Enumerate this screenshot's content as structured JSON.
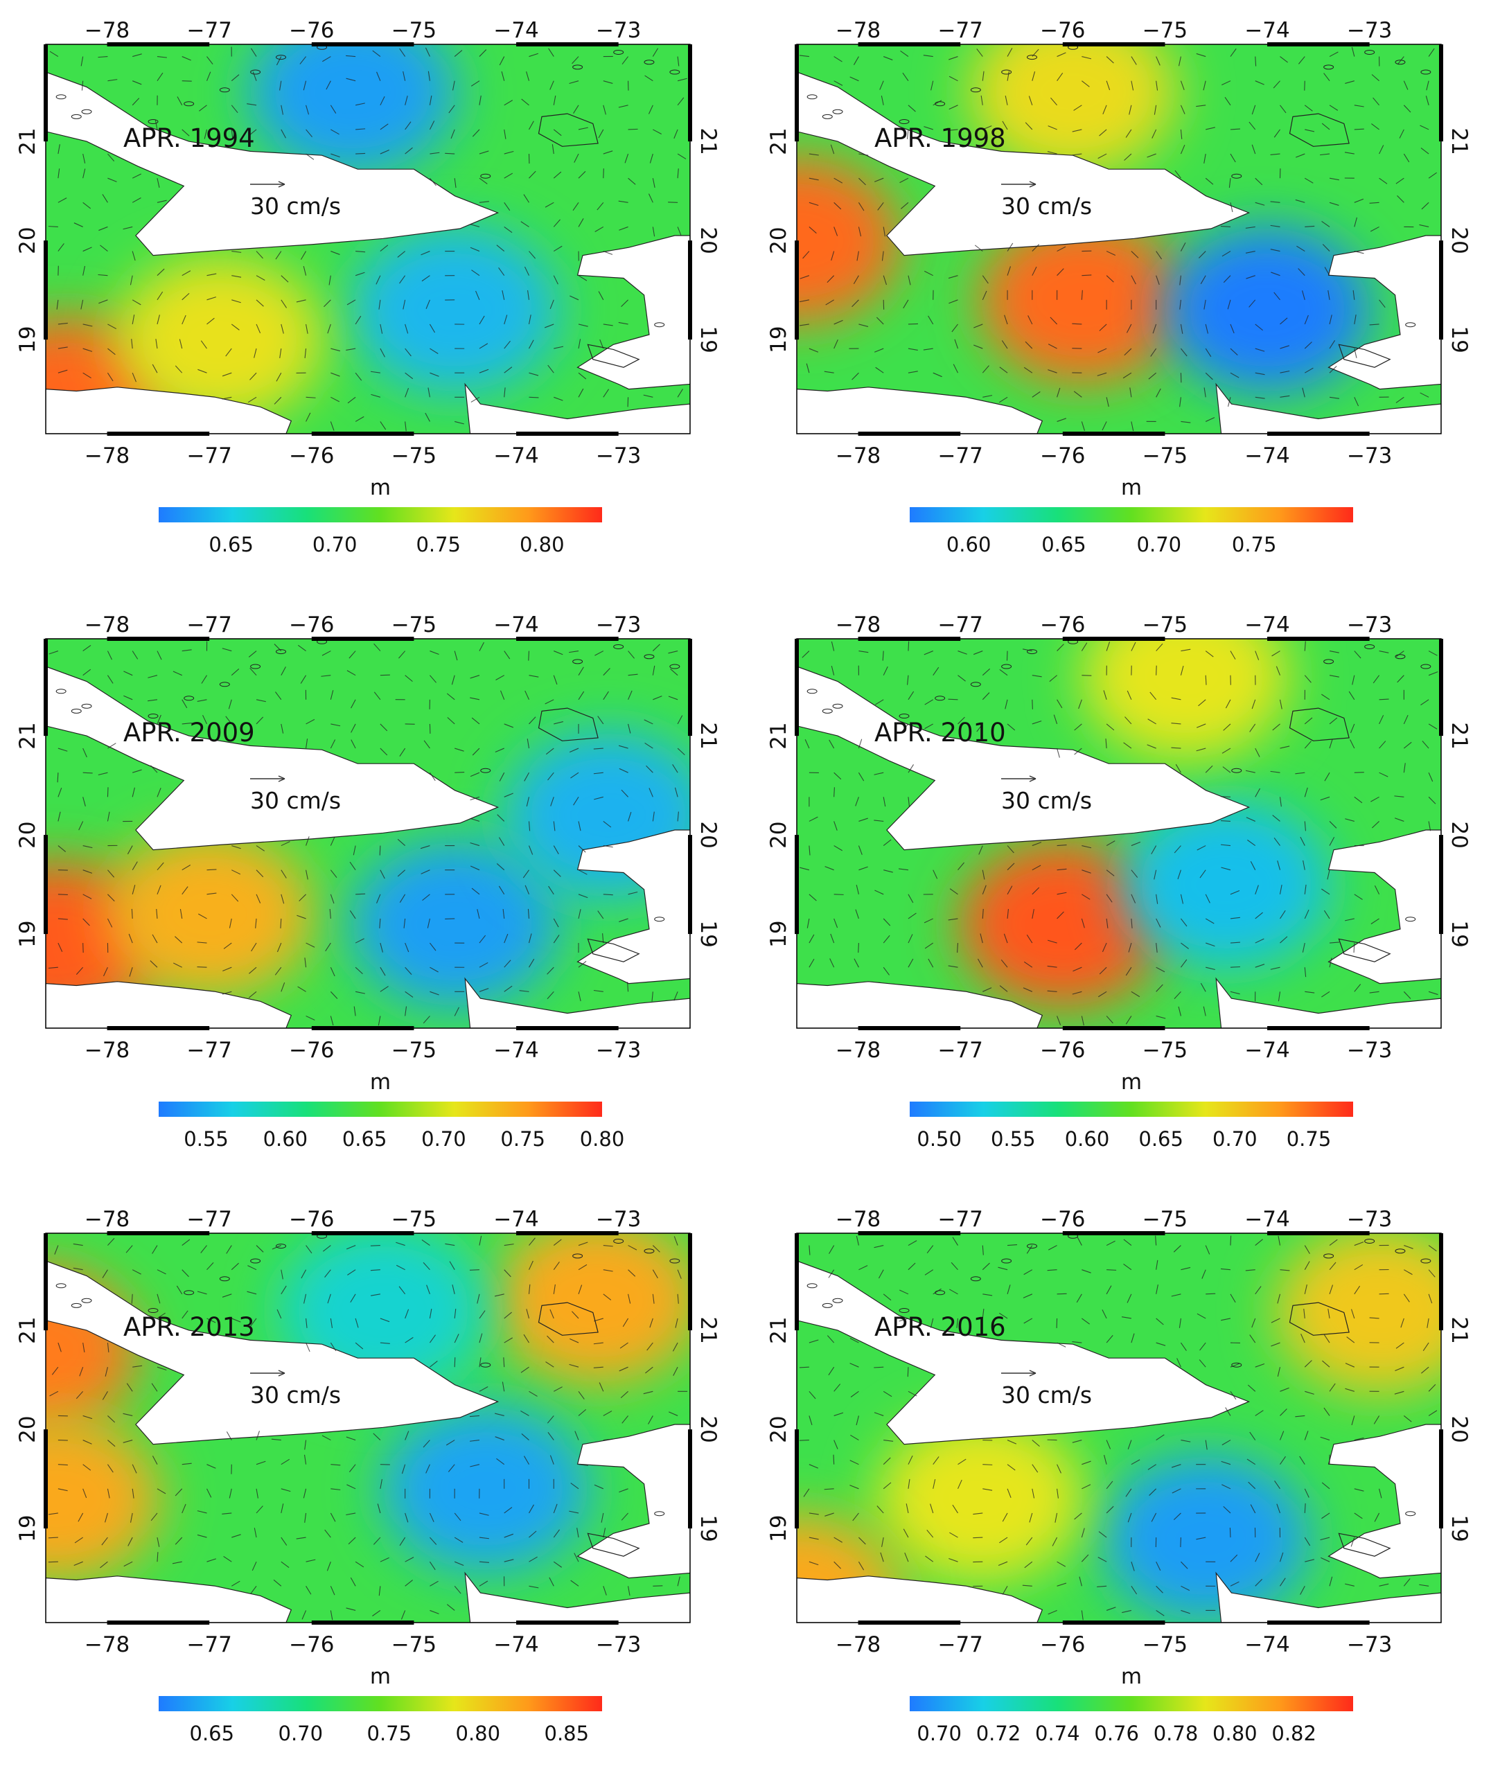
{
  "figure": {
    "axis_lon_ticks": [
      "−78",
      "−77",
      "−76",
      "−75",
      "−74",
      "−73"
    ],
    "axis_lat_ticks": [
      "19",
      "20",
      "21"
    ],
    "colorbar_unit": "m",
    "colors": {
      "ocean_scale": [
        "#1f7bff",
        "#18d0e6",
        "#18e07a",
        "#62e020",
        "#e6e61a",
        "#ff9a1a",
        "#ff2a1a"
      ],
      "land": "#ffffff",
      "frame": "#000000",
      "arrows": "#222222"
    },
    "panels": [
      {
        "id": "apr-1994",
        "title": "APR. 1994",
        "scale_label": "30 cm/s",
        "colorbar_ticks": [
          "0.65",
          "0.70",
          "0.75",
          "0.80"
        ],
        "colorbar_range": [
          0.615,
          0.829
        ],
        "features": [
          {
            "kind": "low",
            "lon": -75.6,
            "lat": 21.5,
            "value": 0.63
          },
          {
            "kind": "low",
            "lon": -74.6,
            "lat": 19.3,
            "value": 0.64
          },
          {
            "kind": "high",
            "lon": -78.4,
            "lat": 18.4,
            "value": 0.81
          },
          {
            "kind": "high",
            "lon": -76.9,
            "lat": 19.0,
            "value": 0.76
          }
        ]
      },
      {
        "id": "apr-1998",
        "title": "APR. 1998",
        "scale_label": "30 cm/s",
        "colorbar_ticks": [
          "0.60",
          "0.65",
          "0.70",
          "0.75"
        ],
        "colorbar_range": [
          0.569,
          0.802
        ],
        "features": [
          {
            "kind": "high",
            "lon": -78.6,
            "lat": 20.0,
            "value": 0.78
          },
          {
            "kind": "high",
            "lon": -75.8,
            "lat": 19.4,
            "value": 0.78
          },
          {
            "kind": "high",
            "lon": -75.9,
            "lat": 21.5,
            "value": 0.73
          },
          {
            "kind": "low",
            "lon": -74.0,
            "lat": 19.3,
            "value": 0.57
          }
        ]
      },
      {
        "id": "apr-2009",
        "title": "APR. 2009",
        "scale_label": "30 cm/s",
        "colorbar_ticks": [
          "0.55",
          "0.60",
          "0.65",
          "0.70",
          "0.75",
          "0.80"
        ],
        "colorbar_range": [
          0.52,
          0.8
        ],
        "features": [
          {
            "kind": "high",
            "lon": -78.5,
            "lat": 18.9,
            "value": 0.78
          },
          {
            "kind": "high",
            "lon": -77.0,
            "lat": 19.2,
            "value": 0.74
          },
          {
            "kind": "low",
            "lon": -74.6,
            "lat": 19.1,
            "value": 0.54
          },
          {
            "kind": "low",
            "lon": -73.1,
            "lat": 20.2,
            "value": 0.55
          }
        ]
      },
      {
        "id": "apr-2010",
        "title": "APR. 2010",
        "scale_label": "30 cm/s",
        "colorbar_ticks": [
          "0.50",
          "0.55",
          "0.60",
          "0.65",
          "0.70",
          "0.75"
        ],
        "colorbar_range": [
          0.48,
          0.78
        ],
        "features": [
          {
            "kind": "high",
            "lon": -76.0,
            "lat": 19.1,
            "value": 0.76
          },
          {
            "kind": "low",
            "lon": -74.4,
            "lat": 19.5,
            "value": 0.52
          },
          {
            "kind": "high",
            "lon": -74.8,
            "lat": 21.6,
            "value": 0.68
          }
        ]
      },
      {
        "id": "apr-2013",
        "title": "APR. 2013",
        "scale_label": "30 cm/s",
        "colorbar_ticks": [
          "0.65",
          "0.70",
          "0.75",
          "0.80",
          "0.85"
        ],
        "colorbar_range": [
          0.62,
          0.87
        ],
        "features": [
          {
            "kind": "high",
            "lon": -78.7,
            "lat": 20.8,
            "value": 0.84
          },
          {
            "kind": "high",
            "lon": -78.5,
            "lat": 19.3,
            "value": 0.82
          },
          {
            "kind": "high",
            "lon": -73.2,
            "lat": 21.3,
            "value": 0.82
          },
          {
            "kind": "low",
            "lon": -74.3,
            "lat": 19.4,
            "value": 0.64
          },
          {
            "kind": "low",
            "lon": -75.3,
            "lat": 21.2,
            "value": 0.67
          }
        ]
      },
      {
        "id": "apr-2016",
        "title": "APR. 2016",
        "scale_label": "30 cm/s",
        "colorbar_ticks": [
          "0.70",
          "0.72",
          "0.74",
          "0.76",
          "0.78",
          "0.80",
          "0.82"
        ],
        "colorbar_range": [
          0.69,
          0.84
        ],
        "features": [
          {
            "kind": "low",
            "lon": -74.6,
            "lat": 18.9,
            "value": 0.7
          },
          {
            "kind": "high",
            "lon": -76.8,
            "lat": 19.3,
            "value": 0.79
          },
          {
            "kind": "high",
            "lon": -78.6,
            "lat": 18.3,
            "value": 0.81
          },
          {
            "kind": "high",
            "lon": -72.9,
            "lat": 21.2,
            "value": 0.8
          }
        ]
      }
    ]
  }
}
